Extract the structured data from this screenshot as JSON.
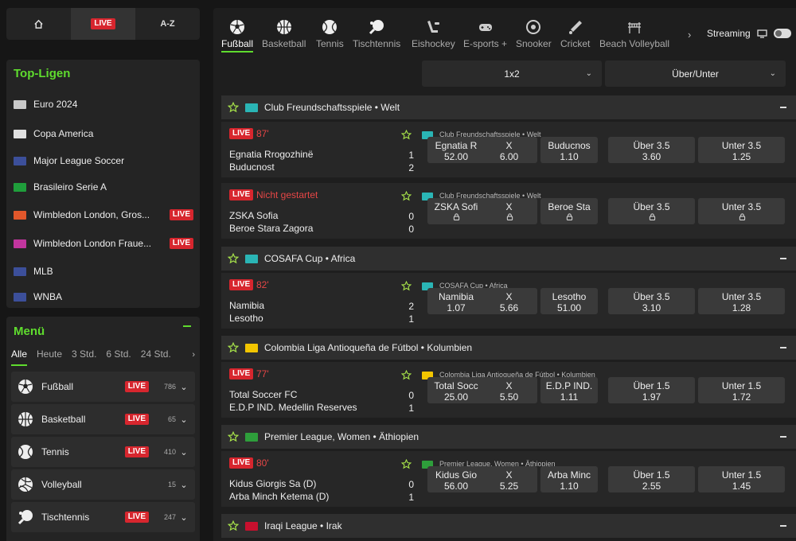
{
  "topnav": {
    "home": "home-icon",
    "live": "LIVE",
    "az": "A-Z"
  },
  "top_leagues": {
    "title": "Top-Ligen",
    "items": [
      {
        "name": "Euro 2024",
        "flag": "#c9c9c9",
        "live": ""
      },
      {
        "name": "Copa America",
        "flag": "#e0e0e0",
        "live": ""
      },
      {
        "name": "Major League Soccer",
        "flag": "#3c4f9a",
        "live": ""
      },
      {
        "name": "Brasileiro Serie A",
        "flag": "#1f9e3b",
        "live": ""
      },
      {
        "name": "Wimbledon London, Gros...",
        "flag": "#e2572b",
        "live": "LIVE"
      },
      {
        "name": "Wimbledon London Fraue...",
        "flag": "#c2359e",
        "live": "LIVE"
      },
      {
        "name": "MLB",
        "flag": "#3c4f9a",
        "live": ""
      },
      {
        "name": "WNBA",
        "flag": "#3c4f9a",
        "live": ""
      }
    ]
  },
  "menu": {
    "title": "Menü",
    "filters": [
      "Alle",
      "Heute",
      "3 Std.",
      "6 Std.",
      "24 Std."
    ],
    "sports": [
      {
        "name": "Fußball",
        "live": "LIVE",
        "count": "786",
        "icon": "soccer-ball-icon"
      },
      {
        "name": "Basketball",
        "live": "LIVE",
        "count": "65",
        "icon": "basketball-icon"
      },
      {
        "name": "Tennis",
        "live": "LIVE",
        "count": "410",
        "icon": "tennis-ball-icon"
      },
      {
        "name": "Volleyball",
        "live": "",
        "count": "15",
        "icon": "volleyball-icon"
      },
      {
        "name": "Tischtennis",
        "live": "LIVE",
        "count": "247",
        "icon": "table-tennis-icon"
      }
    ]
  },
  "tabs": [
    "Fußball",
    "Basketball",
    "Tennis",
    "Tischtennis",
    "Eishockey",
    "E-sports +",
    "Snooker",
    "Cricket",
    "Beach Volleyball"
  ],
  "streaming": "Streaming",
  "selectors": {
    "market1": "1x2",
    "market2": "Über/Unter"
  },
  "groups": [
    {
      "league": "Club Freundschaftsspiele • Welt",
      "flag": "#2ab5b5",
      "events": [
        {
          "live": "LIVE",
          "minute": "87'",
          "home": "Egnatia Rrogozhinë",
          "away": "Buducnost",
          "score_home": "1",
          "score_away": "2",
          "league": "Club Freundschaftsspiele • Welt",
          "odds": [
            {
              "label": "Egnatia R",
              "value": "52.00"
            },
            {
              "label": "X",
              "value": "6.00"
            },
            {
              "label": "Buducnos",
              "value": "1.10"
            },
            {
              "label": "Über 3.5",
              "value": "3.60"
            },
            {
              "label": "Unter 3.5",
              "value": "1.25"
            }
          ]
        },
        {
          "live": "LIVE",
          "minute": "Nicht gestartet",
          "home": "ZSKA Sofia",
          "away": "Beroe Stara Zagora",
          "score_home": "0",
          "score_away": "0",
          "league": "Club Freundschaftsspiele • Welt",
          "odds": [
            {
              "label": "ZSKA Sofi",
              "value": ""
            },
            {
              "label": "X",
              "value": ""
            },
            {
              "label": "Beroe Sta",
              "value": ""
            },
            {
              "label": "Über 3.5",
              "value": ""
            },
            {
              "label": "Unter 3.5",
              "value": ""
            }
          ]
        }
      ]
    },
    {
      "league": "COSAFA Cup • Africa",
      "flag": "#2ab5b5",
      "events": [
        {
          "live": "LIVE",
          "minute": "82'",
          "home": "Namibia",
          "away": "Lesotho",
          "score_home": "2",
          "score_away": "1",
          "league": "COSAFA Cup • Africa",
          "odds": [
            {
              "label": "Namibia",
              "value": "1.07"
            },
            {
              "label": "X",
              "value": "5.66"
            },
            {
              "label": "Lesotho",
              "value": "51.00"
            },
            {
              "label": "Über 3.5",
              "value": "3.10"
            },
            {
              "label": "Unter 3.5",
              "value": "1.28"
            }
          ]
        }
      ]
    },
    {
      "league": "Colombia Liga Antioqueña de Fútbol • Kolumbien",
      "flag": "#f2c500",
      "events": [
        {
          "live": "LIVE",
          "minute": "77'",
          "home": "Total Soccer FC",
          "away": "E.D.P IND. Medellin Reserves",
          "score_home": "0",
          "score_away": "1",
          "league": "Colombia Liga Antioqueña de Fútbol • Kolumbien",
          "odds": [
            {
              "label": "Total Socc",
              "value": "25.00"
            },
            {
              "label": "X",
              "value": "5.50"
            },
            {
              "label": "E.D.P IND.",
              "value": "1.11"
            },
            {
              "label": "Über 1.5",
              "value": "1.97"
            },
            {
              "label": "Unter 1.5",
              "value": "1.72"
            }
          ]
        }
      ]
    },
    {
      "league": "Premier League, Women • Äthiopien",
      "flag": "#2e9e3b",
      "events": [
        {
          "live": "LIVE",
          "minute": "80'",
          "home": "Kidus Giorgis Sa (D)",
          "away": "Arba Minch Ketema (D)",
          "score_home": "0",
          "score_away": "1",
          "league": "Premier League, Women • Äthiopien",
          "odds": [
            {
              "label": "Kidus Gio",
              "value": "56.00"
            },
            {
              "label": "X",
              "value": "5.25"
            },
            {
              "label": "Arba Minc",
              "value": "1.10"
            },
            {
              "label": "Über 1.5",
              "value": "2.55"
            },
            {
              "label": "Unter 1.5",
              "value": "1.45"
            }
          ]
        }
      ]
    },
    {
      "league": "Iraqi League • Irak",
      "flag": "#c8102e",
      "events": []
    }
  ]
}
